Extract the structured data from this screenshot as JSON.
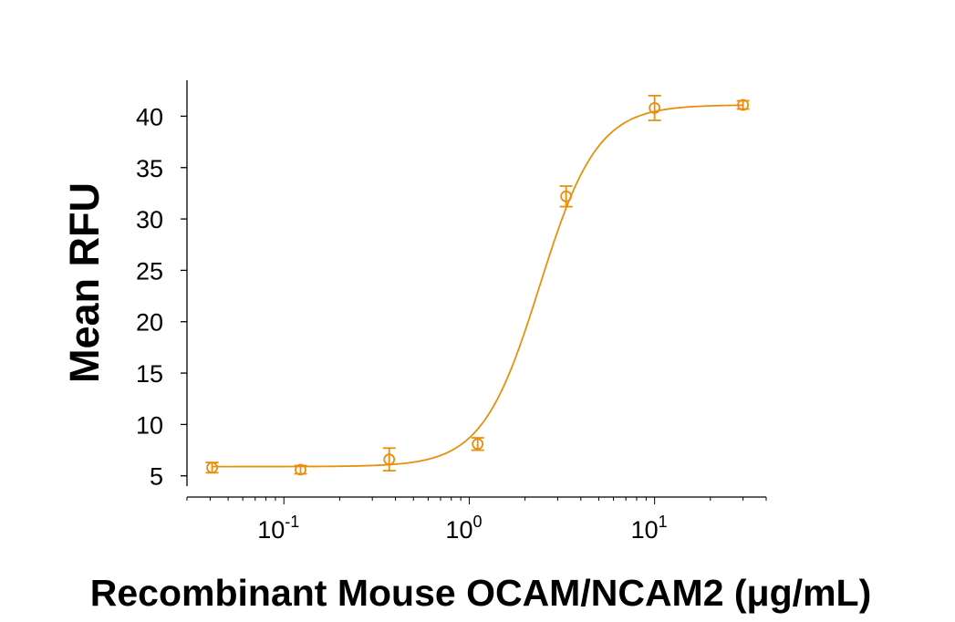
{
  "chart_data": {
    "type": "scatter",
    "title": "",
    "xlabel": "Recombinant Mouse OCAM/NCAM2 (μg/mL)",
    "ylabel": "Mean RFU",
    "x_scale": "log",
    "xlim": [
      0.03,
      40
    ],
    "ylim": [
      4,
      43.5
    ],
    "y_ticks": [
      5,
      10,
      15,
      20,
      25,
      30,
      35,
      40
    ],
    "x_ticks": [
      {
        "value": 0.1,
        "base": "10",
        "exp": "-1"
      },
      {
        "value": 1,
        "base": "10",
        "exp": "0"
      },
      {
        "value": 10,
        "base": "10",
        "exp": "1"
      }
    ],
    "grid": false,
    "legend": "none",
    "color": "#e8900e",
    "series": [
      {
        "marker": "open-circle",
        "x": [
          0.041,
          0.123,
          0.37,
          1.11,
          3.33,
          10,
          30
        ],
        "y": [
          5.8,
          5.6,
          6.6,
          8.1,
          32.2,
          40.8,
          41.1
        ],
        "error": [
          0.5,
          0.4,
          1.1,
          0.6,
          1.0,
          1.2,
          0.4
        ]
      }
    ],
    "fit_curve": {
      "model": "4PL",
      "bottom": 5.9,
      "top": 41.1,
      "ec50": 2.4,
      "hill": 2.8
    }
  }
}
